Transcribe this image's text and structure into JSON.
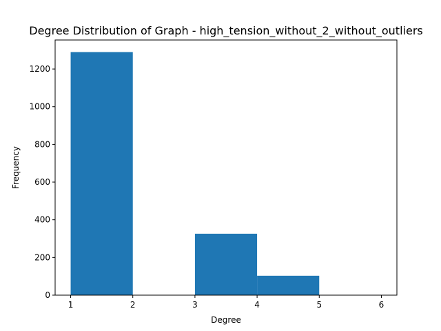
{
  "chart_data": {
    "type": "bar",
    "title": "Degree Distribution of Graph - high_tension_without_2_without_outliers",
    "xlabel": "Degree",
    "ylabel": "Frequency",
    "bins": [
      {
        "start": 1,
        "end": 2,
        "value": 1290
      },
      {
        "start": 2,
        "end": 3,
        "value": 0
      },
      {
        "start": 3,
        "end": 4,
        "value": 326
      },
      {
        "start": 4,
        "end": 5,
        "value": 103
      },
      {
        "start": 5,
        "end": 6,
        "value": 0
      }
    ],
    "xlim": [
      0.75,
      6.25
    ],
    "ylim": [
      0,
      1354
    ],
    "xticks": [
      1,
      2,
      3,
      4,
      5,
      6
    ],
    "yticks": [
      0,
      200,
      400,
      600,
      800,
      1000,
      1200
    ],
    "bar_color": "#1f77b4",
    "grid": false,
    "legend": "none"
  }
}
